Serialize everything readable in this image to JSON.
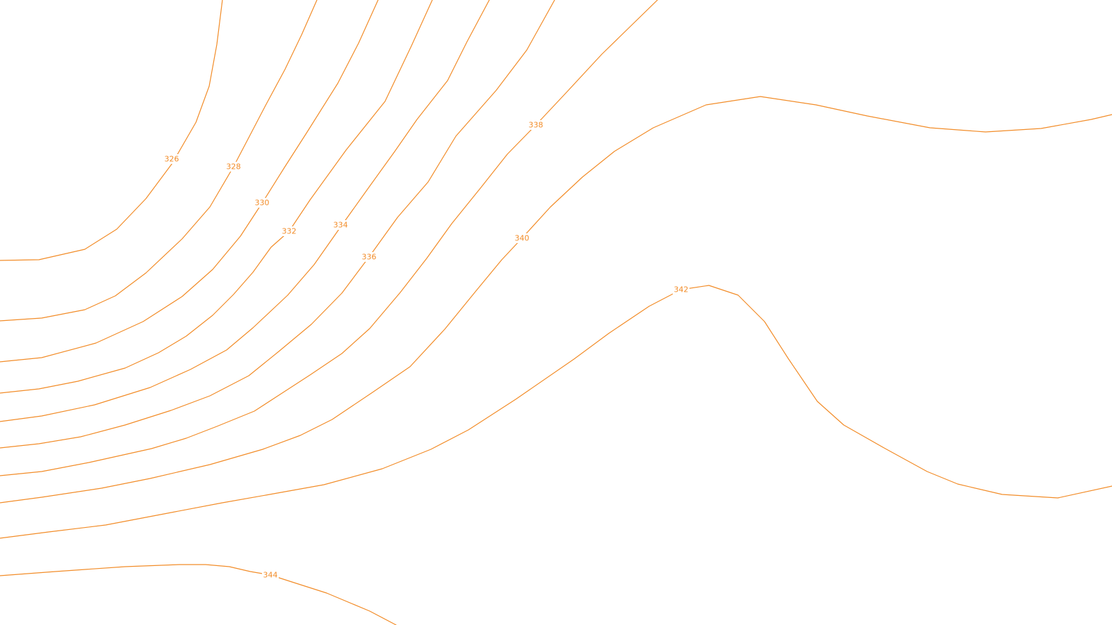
{
  "map": {
    "line_color": "#f28c28",
    "label_color": "#f28c28",
    "background": "#ffffff",
    "contours": [
      {
        "elevation": "326"
      },
      {
        "elevation": "328"
      },
      {
        "elevation": "330"
      },
      {
        "elevation": "332"
      },
      {
        "elevation": "334"
      },
      {
        "elevation": "336"
      },
      {
        "elevation": "338"
      },
      {
        "elevation": "340"
      },
      {
        "elevation": "342"
      },
      {
        "elevation": "344"
      }
    ]
  }
}
